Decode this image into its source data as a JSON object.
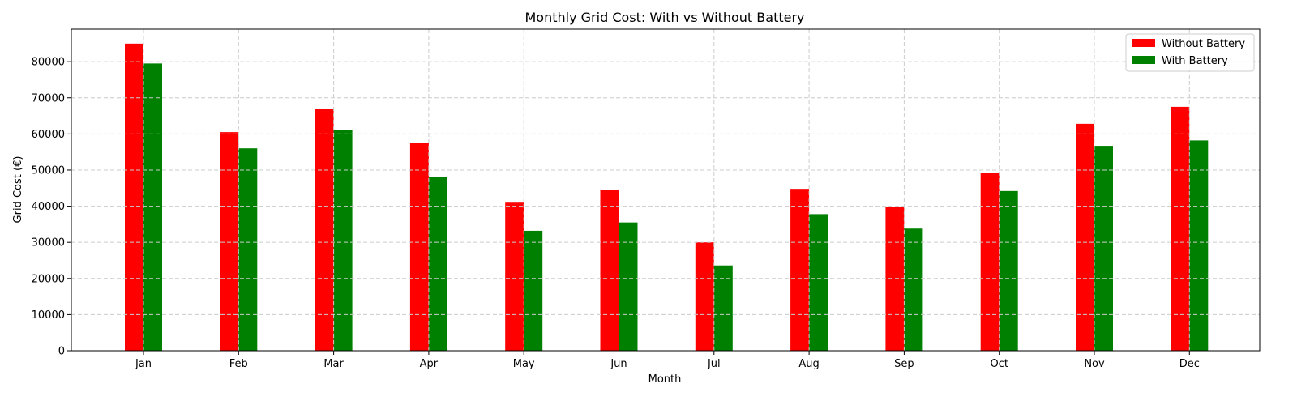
{
  "chart_data": {
    "type": "bar",
    "title": "Monthly Grid Cost: With vs Without Battery",
    "xlabel": "Month",
    "ylabel": "Grid Cost (€)",
    "categories": [
      "Jan",
      "Feb",
      "Mar",
      "Apr",
      "May",
      "Jun",
      "Jul",
      "Aug",
      "Sep",
      "Oct",
      "Nov",
      "Dec"
    ],
    "ylim": [
      0,
      89000
    ],
    "yticks": [
      0,
      10000,
      20000,
      30000,
      40000,
      50000,
      60000,
      70000,
      80000
    ],
    "grid": true,
    "legend_position": "top-right",
    "series": [
      {
        "name": "Without Battery",
        "color": "#ff0000",
        "values": [
          85000,
          60500,
          67000,
          57500,
          41200,
          44500,
          30000,
          44800,
          39800,
          49200,
          62800,
          67500
        ]
      },
      {
        "name": "With Battery",
        "color": "#008000",
        "values": [
          79500,
          56000,
          61000,
          48200,
          33200,
          35500,
          23600,
          37800,
          33800,
          44200,
          56700,
          58200
        ]
      }
    ]
  }
}
